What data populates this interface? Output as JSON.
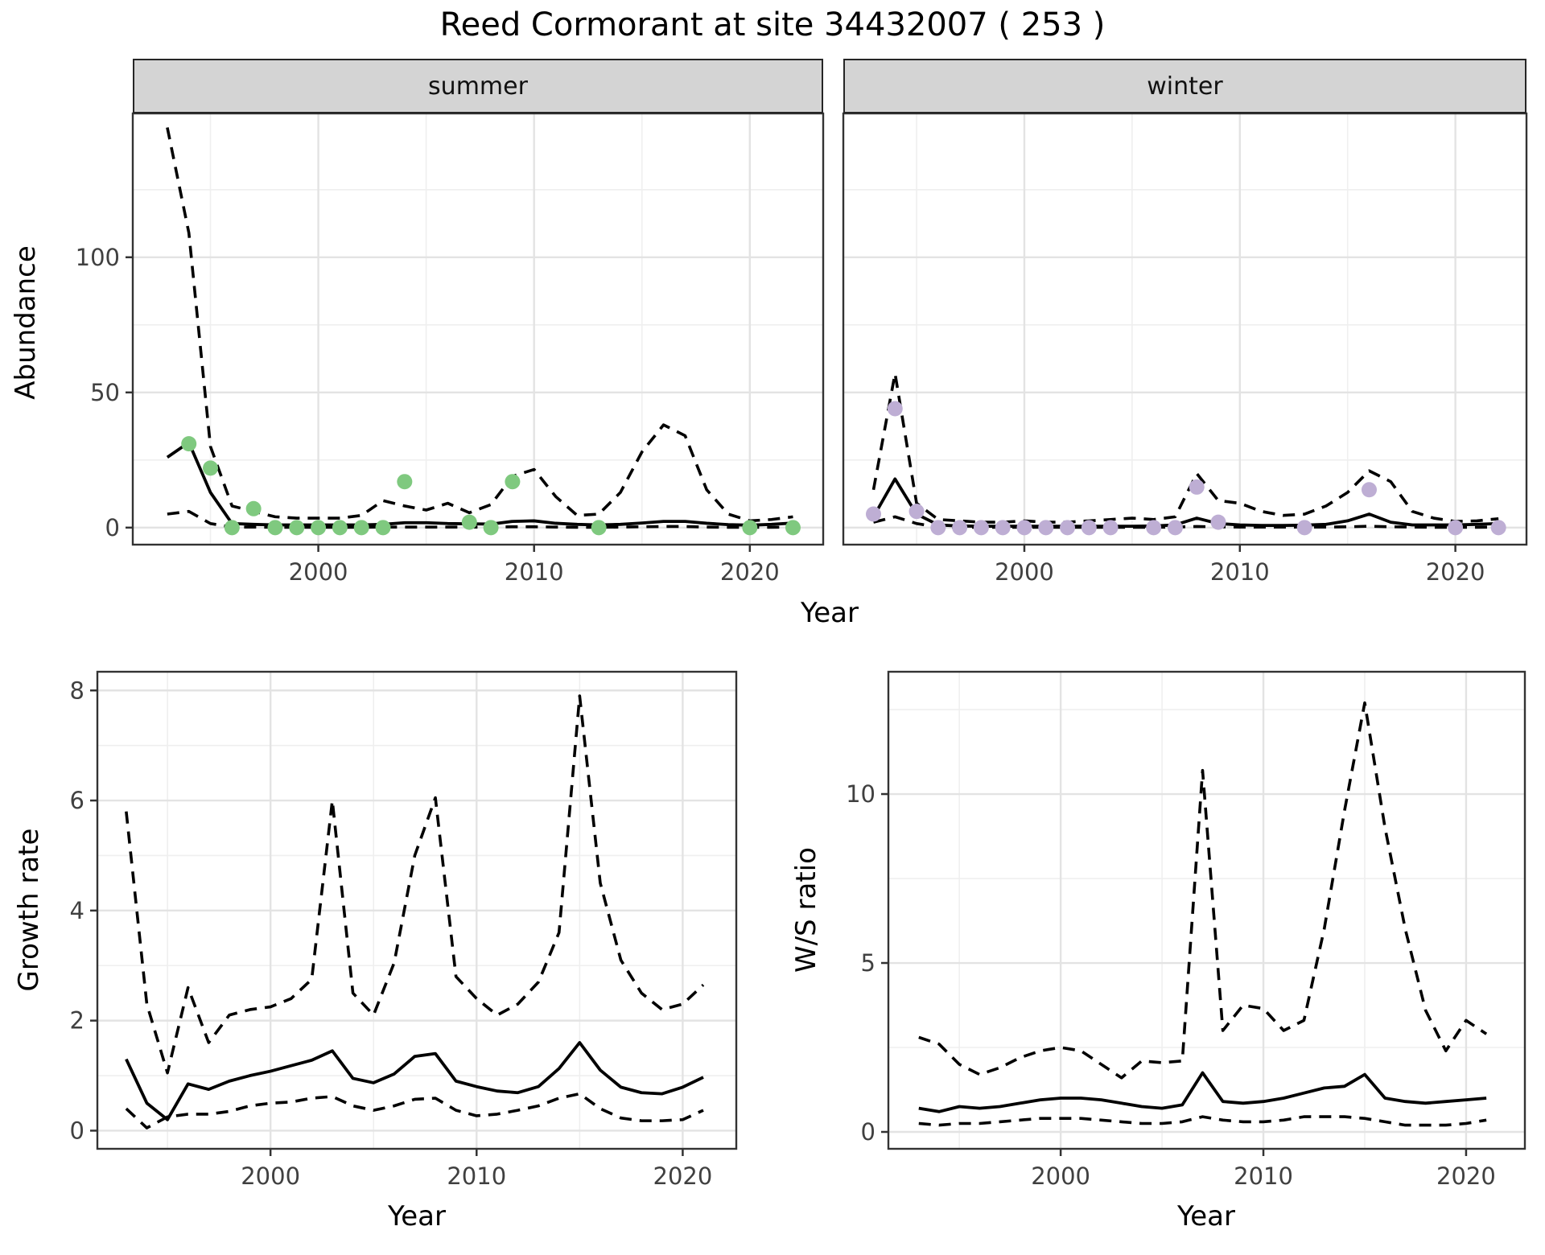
{
  "title": "Reed Cormorant at site 34432007 ( 253 )",
  "facets": [
    {
      "label": "summer"
    },
    {
      "label": "winter"
    }
  ],
  "axes": {
    "abundance": "Abundance",
    "year_top": "Year",
    "growth_rate": "Growth rate",
    "year_growth": "Year",
    "ws_ratio": "W/S ratio",
    "year_ws": "Year"
  },
  "colors": {
    "summer_points": "#7FC97F",
    "winter_points": "#BEAED4",
    "line": "#000000",
    "grid_major": "#e3e3e3",
    "grid_minor": "#efefef",
    "panel_border": "#333333",
    "tick_text": "#404040"
  },
  "chart_data": [
    {
      "id": "abundance-summer",
      "type": "line",
      "facet": "summer",
      "ylabel": "Abundance",
      "xlabel": "Year",
      "x": [
        1993,
        1994,
        1995,
        1996,
        1997,
        1998,
        1999,
        2000,
        2001,
        2002,
        2003,
        2004,
        2005,
        2006,
        2007,
        2008,
        2009,
        2010,
        2011,
        2012,
        2013,
        2014,
        2015,
        2016,
        2017,
        2018,
        2019,
        2020,
        2021,
        2022
      ],
      "series": [
        {
          "name": "mean",
          "style": "solid",
          "values": [
            26,
            31.5,
            13,
            1.5,
            1.2,
            1,
            1,
            1,
            1,
            1,
            1.2,
            1.8,
            1.8,
            1.5,
            1.4,
            1.3,
            2.3,
            2.5,
            1.6,
            1.2,
            1,
            1.2,
            1.7,
            2.3,
            2.3,
            1.6,
            1.1,
            0.9,
            1.2,
            1.7
          ]
        },
        {
          "name": "upper_ci",
          "style": "dashed",
          "values": [
            148,
            109,
            30,
            8,
            6,
            4,
            3.5,
            3.5,
            3.5,
            4.5,
            10,
            8,
            6.5,
            9,
            5.5,
            8.5,
            19,
            21.5,
            11.5,
            4.5,
            5,
            13,
            28,
            38,
            34,
            14,
            5,
            2.5,
            3,
            4
          ]
        },
        {
          "name": "lower_ci",
          "style": "dashed",
          "values": [
            5,
            6,
            1.5,
            0.2,
            0.2,
            0.1,
            0.1,
            0.1,
            0.1,
            0.1,
            0.2,
            0.2,
            0.2,
            0.2,
            0.2,
            0.2,
            0.3,
            0.3,
            0.2,
            0.1,
            0.1,
            0.2,
            0.3,
            0.4,
            0.4,
            0.2,
            0.1,
            0.1,
            0.1,
            0.2
          ]
        }
      ],
      "points": {
        "x": [
          1994,
          1995,
          1996,
          1997,
          1998,
          1999,
          2000,
          2001,
          2002,
          2003,
          2004,
          2007,
          2008,
          2009,
          2013,
          2020,
          2022
        ],
        "y": [
          31,
          22,
          0,
          7,
          0,
          0,
          0,
          0,
          0,
          0,
          17,
          2,
          0,
          17,
          0,
          0,
          0
        ],
        "color": "#7FC97F"
      },
      "xlim": [
        1991.4,
        2023.4
      ],
      "ylim": [
        -6.3,
        153.2
      ],
      "xticks": {
        "values": [
          2000,
          2010,
          2020
        ],
        "labels": [
          "2000",
          "2010",
          "2020"
        ]
      },
      "x_minor": [
        1995,
        2005,
        2015
      ],
      "yticks": {
        "values": [
          0,
          50,
          100
        ],
        "labels": [
          "0",
          "50",
          "100"
        ]
      },
      "y_minor": [
        25,
        75,
        125
      ],
      "grid": true
    },
    {
      "id": "abundance-winter",
      "type": "line",
      "facet": "winter",
      "ylabel": "Abundance",
      "xlabel": "Year",
      "x": [
        1993,
        1994,
        1995,
        1996,
        1997,
        1998,
        1999,
        2000,
        2001,
        2002,
        2003,
        2004,
        2005,
        2006,
        2007,
        2008,
        2009,
        2010,
        2011,
        2012,
        2013,
        2014,
        2015,
        2016,
        2017,
        2018,
        2019,
        2020,
        2021,
        2022
      ],
      "series": [
        {
          "name": "mean",
          "style": "solid",
          "values": [
            4,
            18,
            5,
            1,
            0.6,
            0.5,
            0.5,
            0.5,
            0.5,
            0.5,
            0.5,
            0.5,
            0.5,
            0.6,
            1,
            3.5,
            1.5,
            1,
            0.8,
            0.8,
            0.9,
            1.2,
            2.5,
            5,
            2,
            1,
            1,
            1,
            1.2,
            1.5
          ]
        },
        {
          "name": "upper_ci",
          "style": "dashed",
          "values": [
            14,
            57,
            9,
            3,
            2.5,
            2,
            2,
            2.5,
            2,
            2,
            2.5,
            3,
            3.5,
            3,
            4,
            20,
            10,
            9,
            6,
            4.5,
            5,
            8,
            13,
            21,
            17,
            6,
            3.5,
            2.3,
            2.5,
            3.3
          ]
        },
        {
          "name": "lower_ci",
          "style": "dashed",
          "values": [
            2,
            4,
            1.5,
            0.2,
            0.1,
            0.1,
            0.1,
            0.1,
            0.1,
            0.1,
            0.1,
            0.1,
            0.1,
            0.1,
            0.2,
            0.4,
            0.3,
            0.2,
            0.2,
            0.2,
            0.2,
            0.2,
            0.3,
            0.5,
            0.3,
            0.2,
            0.1,
            0.1,
            0.1,
            0.2
          ]
        }
      ],
      "points": {
        "x": [
          1993,
          1994,
          1995,
          1996,
          1997,
          1998,
          1999,
          2000,
          2001,
          2002,
          2003,
          2004,
          2006,
          2007,
          2008,
          2009,
          2013,
          2016,
          2020,
          2022
        ],
        "y": [
          5,
          44,
          6,
          0,
          0,
          0,
          0,
          0,
          0,
          0,
          0,
          0,
          0,
          0,
          15,
          2,
          0,
          14,
          0,
          0
        ],
        "color": "#BEAED4"
      },
      "xlim": [
        1991.6,
        2023.3
      ],
      "ylim": [
        -6.3,
        153.2
      ],
      "xticks": {
        "values": [
          2000,
          2010,
          2020
        ],
        "labels": [
          "2000",
          "2010",
          "2020"
        ]
      },
      "x_minor": [
        1995,
        2005,
        2015
      ],
      "yticks": {
        "values": [
          0,
          50,
          100
        ],
        "labels": [
          "0",
          "50",
          "100"
        ]
      },
      "y_minor": [
        25,
        75,
        125
      ],
      "grid": true
    },
    {
      "id": "growth-rate",
      "type": "line",
      "facet": null,
      "ylabel": "Growth rate",
      "xlabel": "Year",
      "x": [
        1993,
        1994,
        1995,
        1996,
        1997,
        1998,
        1999,
        2000,
        2001,
        2002,
        2003,
        2004,
        2005,
        2006,
        2007,
        2008,
        2009,
        2010,
        2011,
        2012,
        2013,
        2014,
        2015,
        2016,
        2017,
        2018,
        2019,
        2020,
        2021
      ],
      "series": [
        {
          "name": "mean",
          "style": "solid",
          "values": [
            1.3,
            0.5,
            0.2,
            0.85,
            0.75,
            0.9,
            1.0,
            1.08,
            1.18,
            1.28,
            1.45,
            0.95,
            0.87,
            1.03,
            1.35,
            1.4,
            0.9,
            0.8,
            0.72,
            0.69,
            0.8,
            1.13,
            1.6,
            1.1,
            0.79,
            0.69,
            0.67,
            0.79,
            0.97
          ]
        },
        {
          "name": "upper_ci",
          "style": "dashed",
          "values": [
            5.8,
            2.3,
            1.05,
            2.6,
            1.6,
            2.1,
            2.2,
            2.25,
            2.4,
            2.75,
            6.0,
            2.5,
            2.1,
            3.05,
            5.0,
            6.05,
            2.8,
            2.4,
            2.1,
            2.3,
            2.7,
            3.6,
            7.9,
            4.5,
            3.1,
            2.5,
            2.2,
            2.3,
            2.65
          ]
        },
        {
          "name": "lower_ci",
          "style": "dashed",
          "values": [
            0.4,
            0.05,
            0.25,
            0.3,
            0.3,
            0.35,
            0.45,
            0.5,
            0.52,
            0.59,
            0.62,
            0.45,
            0.37,
            0.45,
            0.57,
            0.59,
            0.37,
            0.27,
            0.3,
            0.37,
            0.45,
            0.59,
            0.67,
            0.4,
            0.23,
            0.18,
            0.18,
            0.2,
            0.37
          ]
        }
      ],
      "points": null,
      "xlim": [
        1991.6,
        2022.6
      ],
      "ylim": [
        -0.33,
        8.34
      ],
      "xticks": {
        "values": [
          2000,
          2010,
          2020
        ],
        "labels": [
          "2000",
          "2010",
          "2020"
        ]
      },
      "x_minor": [
        1995,
        2005,
        2015
      ],
      "yticks": {
        "values": [
          0,
          2,
          4,
          6,
          8
        ],
        "labels": [
          "0",
          "2",
          "4",
          "6",
          "8"
        ]
      },
      "y_minor": [
        1,
        3,
        5,
        7
      ],
      "grid": true
    },
    {
      "id": "ws-ratio",
      "type": "line",
      "facet": null,
      "ylabel": "W/S ratio",
      "xlabel": "Year",
      "x": [
        1993,
        1994,
        1995,
        1996,
        1997,
        1998,
        1999,
        2000,
        2001,
        2002,
        2003,
        2004,
        2005,
        2006,
        2007,
        2008,
        2009,
        2010,
        2011,
        2012,
        2013,
        2014,
        2015,
        2016,
        2017,
        2018,
        2019,
        2020,
        2021
      ],
      "series": [
        {
          "name": "mean",
          "style": "solid",
          "values": [
            0.7,
            0.6,
            0.75,
            0.7,
            0.75,
            0.85,
            0.95,
            1.0,
            1.0,
            0.95,
            0.85,
            0.75,
            0.7,
            0.8,
            1.75,
            0.9,
            0.85,
            0.9,
            1.0,
            1.15,
            1.3,
            1.35,
            1.7,
            1.0,
            0.9,
            0.85,
            0.9,
            0.95,
            1.0
          ]
        },
        {
          "name": "upper_ci",
          "style": "dashed",
          "values": [
            2.8,
            2.6,
            2.0,
            1.7,
            1.9,
            2.2,
            2.4,
            2.5,
            2.4,
            2.0,
            1.6,
            2.1,
            2.05,
            2.1,
            10.7,
            3.0,
            3.75,
            3.65,
            3.0,
            3.3,
            6.0,
            9.5,
            12.7,
            9.0,
            6.0,
            3.6,
            2.4,
            3.3,
            2.9
          ]
        },
        {
          "name": "lower_ci",
          "style": "dashed",
          "values": [
            0.25,
            0.2,
            0.25,
            0.25,
            0.3,
            0.35,
            0.4,
            0.4,
            0.4,
            0.35,
            0.3,
            0.25,
            0.25,
            0.3,
            0.45,
            0.35,
            0.3,
            0.3,
            0.35,
            0.45,
            0.45,
            0.45,
            0.4,
            0.3,
            0.2,
            0.2,
            0.2,
            0.25,
            0.35
          ]
        }
      ],
      "points": null,
      "xlim": [
        1991.5,
        2022.9
      ],
      "ylim": [
        -0.5,
        13.62
      ],
      "xticks": {
        "values": [
          2000,
          2010,
          2020
        ],
        "labels": [
          "2000",
          "2010",
          "2020"
        ]
      },
      "x_minor": [
        1995,
        2005,
        2015
      ],
      "yticks": {
        "values": [
          0,
          5,
          10
        ],
        "labels": [
          "0",
          "5",
          "10"
        ]
      },
      "y_minor": [
        2.5,
        7.5,
        12.5
      ],
      "grid": true
    }
  ]
}
